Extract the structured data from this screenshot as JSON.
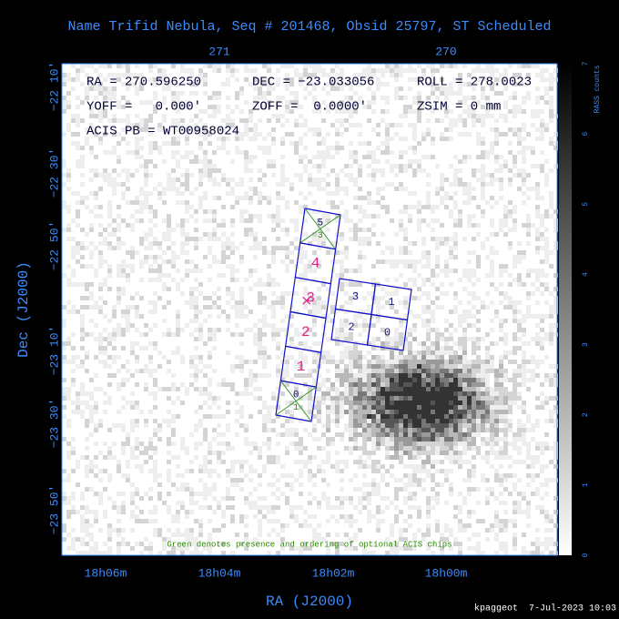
{
  "title": "Name Trifid Nebula, Seq # 201468, Obsid 25797, ST Scheduled",
  "top_axis": {
    "ticks": [
      "271",
      "270"
    ]
  },
  "left_axis": {
    "label": "Dec (J2000)",
    "ticks": [
      "−22 10′",
      "−22 30′",
      "−22 50′",
      "−23 10′",
      "−23 30′",
      "−23 50′"
    ]
  },
  "bottom_axis": {
    "label": "RA (J2000)",
    "ticks": [
      "18h06m",
      "18h04m",
      "18h02m",
      "18h00m"
    ]
  },
  "info": {
    "row1": [
      "RA = 270.596250",
      "DEC = −23.033056",
      "ROLL = 278.0023"
    ],
    "row2": [
      "YOFF =   0.000′",
      "ZOFF =  0.0000′",
      "ZSIM = 0 mm"
    ],
    "row3": "ACIS PB = WT00958024"
  },
  "acis_s": {
    "chips": [
      "5",
      "4",
      "3",
      "2",
      "1",
      "0"
    ]
  },
  "acis_i": {
    "chips": [
      "3",
      "1",
      "2",
      "0"
    ]
  },
  "optional_chips": [
    "3",
    "1"
  ],
  "note": "Green denotes presence and ordering of optional ACIS chips",
  "colorbar": {
    "label": "RASS counts",
    "ticks": [
      "0",
      "1",
      "2",
      "3",
      "4",
      "5",
      "6",
      "7"
    ]
  },
  "footer": "kpaggeot  7-Jul-2023 10:03"
}
